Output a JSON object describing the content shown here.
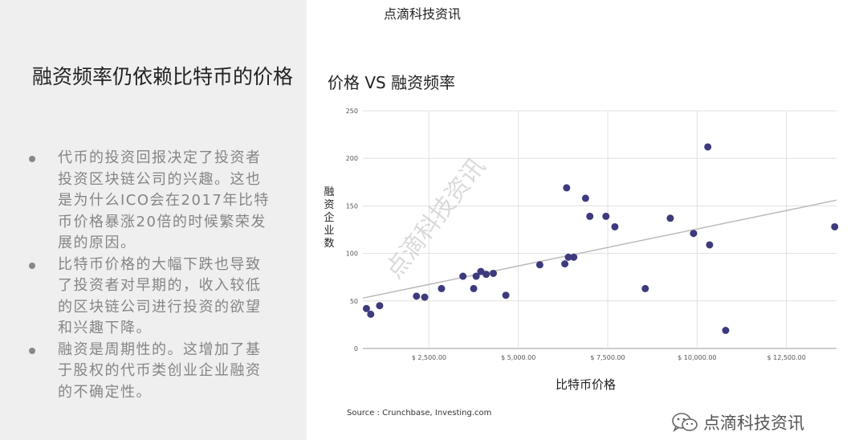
{
  "header": {
    "brand": "点滴科技资讯"
  },
  "slide": {
    "title": "融资频率仍依赖比特币的价格",
    "bullets": [
      "代币的投资回报决定了投资者投资区块链公司的兴趣。这也是为什么ICO会在2017年比特币价格暴涨20倍的时候繁荣发展的原因。",
      "比特币价格的大幅下跌也导致了投资者对早期的，收入较低的区块链公司进行投资的欲望和兴趣下降。",
      "融资是周期性的。这增加了基于股权的代币类创业企业融资的不确定性。"
    ]
  },
  "source": "Source : Crunchbase, Investing.com",
  "watermark": {
    "text": "点滴科技资讯",
    "diagonal": "点滴科技资讯"
  },
  "chart_data": {
    "type": "scatter",
    "title": "价格 VS 融资频率",
    "xlabel": "比特币价格",
    "ylabel": "融资企业数",
    "xlim": [
      650,
      13900
    ],
    "ylim": [
      0,
      250
    ],
    "x_ticks": [
      2500,
      5000,
      7500,
      10000,
      12500
    ],
    "x_tick_labels": [
      "$ 2,500.00",
      "$ 5,000.00",
      "$ 7,500.00",
      "$ 10,000.00",
      "$ 12,500.00"
    ],
    "y_ticks": [
      0,
      50,
      100,
      150,
      200,
      250
    ],
    "y_tick_labels": [
      "0",
      "50",
      "100",
      "150",
      "200",
      "250"
    ],
    "grid": true,
    "point_color": "#3d3a7d",
    "trendline": {
      "start": [
        650,
        53
      ],
      "end": [
        13900,
        156
      ],
      "color": "#bbbbbb"
    },
    "points": [
      {
        "x": 750,
        "y": 42
      },
      {
        "x": 870,
        "y": 36
      },
      {
        "x": 1120,
        "y": 45
      },
      {
        "x": 2150,
        "y": 55
      },
      {
        "x": 2380,
        "y": 54
      },
      {
        "x": 2850,
        "y": 63
      },
      {
        "x": 3450,
        "y": 76
      },
      {
        "x": 3750,
        "y": 63
      },
      {
        "x": 3820,
        "y": 76
      },
      {
        "x": 3950,
        "y": 81
      },
      {
        "x": 4100,
        "y": 78
      },
      {
        "x": 4300,
        "y": 79
      },
      {
        "x": 4650,
        "y": 56
      },
      {
        "x": 5600,
        "y": 88
      },
      {
        "x": 6300,
        "y": 89
      },
      {
        "x": 6350,
        "y": 169
      },
      {
        "x": 6400,
        "y": 96
      },
      {
        "x": 6550,
        "y": 96
      },
      {
        "x": 6880,
        "y": 158
      },
      {
        "x": 7000,
        "y": 139
      },
      {
        "x": 7450,
        "y": 139
      },
      {
        "x": 7700,
        "y": 128
      },
      {
        "x": 8550,
        "y": 63
      },
      {
        "x": 9250,
        "y": 137
      },
      {
        "x": 9900,
        "y": 121
      },
      {
        "x": 10300,
        "y": 212
      },
      {
        "x": 10350,
        "y": 109
      },
      {
        "x": 10800,
        "y": 19
      },
      {
        "x": 13850,
        "y": 128
      }
    ]
  }
}
